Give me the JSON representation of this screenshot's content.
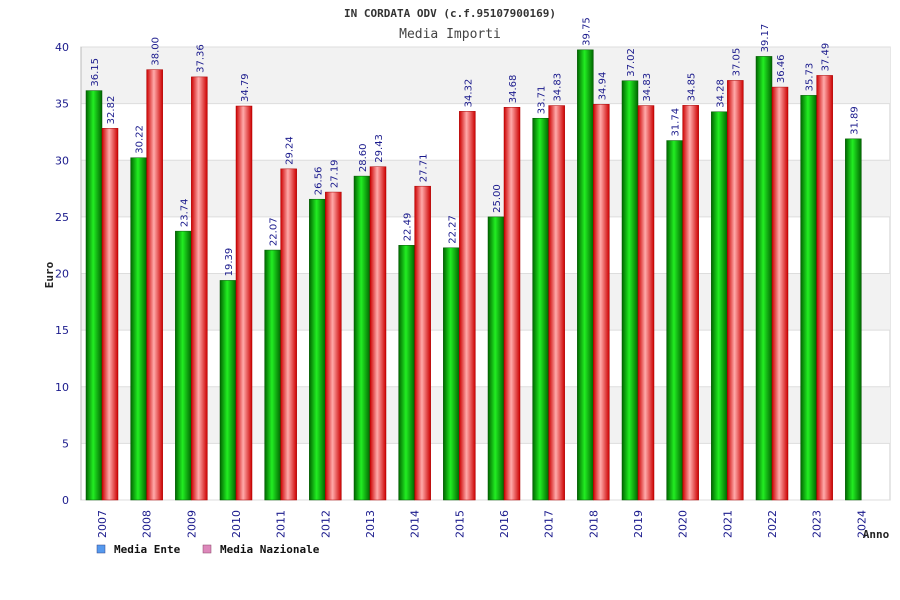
{
  "chart_data": {
    "type": "bar",
    "title": "IN CORDATA ODV (c.f.95107900169)",
    "subtitle": "Media Importi",
    "xlabel": "Anno",
    "ylabel": "Euro",
    "ylim": [
      0,
      40
    ],
    "yticks": [
      0,
      5,
      10,
      15,
      20,
      25,
      30,
      35,
      40
    ],
    "grid": true,
    "legend_position": "bottom-left",
    "categories": [
      "2007",
      "2008",
      "2009",
      "2010",
      "2011",
      "2012",
      "2013",
      "2014",
      "2015",
      "2016",
      "2017",
      "2018",
      "2019",
      "2020",
      "2021",
      "2022",
      "2023",
      "2024"
    ],
    "series": [
      {
        "name": "Media Ente",
        "color": "#00aa00",
        "legend_color": "#5599ee",
        "values": [
          36.15,
          30.22,
          23.74,
          19.39,
          22.07,
          26.56,
          28.6,
          22.49,
          22.27,
          25.0,
          33.71,
          39.75,
          37.02,
          31.74,
          34.28,
          39.17,
          35.73,
          31.89
        ],
        "labels": [
          "36.15",
          "30.22",
          "23.74",
          "19.39",
          "22.07",
          "26.56",
          "28.60",
          "22.49",
          "22.27",
          "25.00",
          "33.71",
          "39.75",
          "37.02",
          "31.74",
          "34.28",
          "39.17",
          "35.73",
          "31.89"
        ]
      },
      {
        "name": "Media Nazionale",
        "color": "#ee1111",
        "legend_color": "#dd88bb",
        "values": [
          32.82,
          38.0,
          37.36,
          34.79,
          29.24,
          27.19,
          29.43,
          27.71,
          34.32,
          34.68,
          34.83,
          34.94,
          34.83,
          34.85,
          37.05,
          36.46,
          37.49,
          null
        ],
        "labels": [
          "32.82",
          "38.00",
          "37.36",
          "34.79",
          "29.24",
          "27.19",
          "29.43",
          "27.71",
          "34.32",
          "34.68",
          "34.83",
          "34.94",
          "34.83",
          "34.85",
          "37.05",
          "36.46",
          "37.49",
          ""
        ]
      }
    ]
  }
}
